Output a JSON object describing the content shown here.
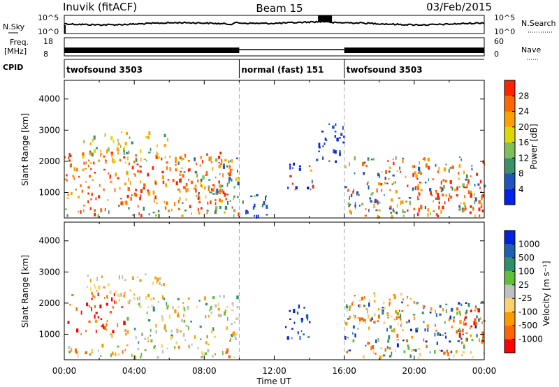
{
  "header": {
    "station": "Inuvik (fitACF)",
    "beam": "Beam 15",
    "date": "03/Feb/2015"
  },
  "summary": {
    "nsky_label": "N.Sky",
    "nsearch_label": "N.Search",
    "nsky_ticks": [
      "10^5",
      "10^0"
    ],
    "nsearch_ticks": [
      "10^5",
      "10^0"
    ],
    "freq_label_1": "Freq.",
    "freq_label_2": "[MHz]",
    "freq_ticks": [
      "18",
      "8"
    ],
    "nave_label": "Nave",
    "nave_ticks": [
      "60",
      "0"
    ],
    "cpid_label": "CPID",
    "cpid_segments": [
      {
        "label": "twofsound 3503",
        "start_h": 0,
        "end_h": 10
      },
      {
        "label": "normal (fast) 151",
        "start_h": 10,
        "end_h": 16
      },
      {
        "label": "twofsound 3503",
        "start_h": 16,
        "end_h": 24
      }
    ]
  },
  "colors": {
    "power_scale": [
      "#0022ee",
      "#2255bb",
      "#3d8f6a",
      "#7fbf5a",
      "#ddd800",
      "#ffa000",
      "#ff6600",
      "#ff2200"
    ],
    "velocity_scale": [
      "#ff0000",
      "#ff6600",
      "#ff9900",
      "#ffd070",
      "#c0c0c0",
      "#5fbf3a",
      "#2e8f6a",
      "#2060b0",
      "#0022dd"
    ]
  },
  "chart_data": [
    {
      "type": "heatmap",
      "name": "power",
      "xlabel": "",
      "ylabel": "Slant Range [km]",
      "x_ticks": [
        "00:00",
        "04:00",
        "08:00",
        "12:00",
        "16:00",
        "20:00",
        "00:00"
      ],
      "y_ticks": [
        "1000",
        "2000",
        "3000",
        "4000"
      ],
      "ylim": [
        180,
        4600
      ],
      "colorbar_label": "Power [dB]",
      "colorbar_ticks": [
        "4",
        "8",
        "12",
        "16",
        "20",
        "24",
        "28"
      ],
      "regions": [
        {
          "t0": 0.0,
          "t1": 9.8,
          "r0": 600,
          "r1": 2250,
          "level": 7,
          "mix": [
            5,
            6,
            7
          ]
        },
        {
          "t0": 1.0,
          "t1": 6.0,
          "r0": 1900,
          "r1": 2900,
          "level": 5,
          "mix": [
            2,
            3,
            4,
            5
          ]
        },
        {
          "t0": 6.5,
          "t1": 10.0,
          "r0": 600,
          "r1": 2100,
          "level": 4,
          "mix": [
            1,
            2,
            3,
            4,
            5,
            6
          ]
        },
        {
          "t0": 0.0,
          "t1": 10.0,
          "r0": 200,
          "r1": 550,
          "level": 5,
          "mix": [
            2,
            3,
            5,
            6,
            7
          ]
        },
        {
          "t0": 10.0,
          "t1": 11.6,
          "r0": 200,
          "r1": 900,
          "level": 2,
          "mix": [
            0,
            1,
            2,
            3
          ]
        },
        {
          "t0": 12.6,
          "t1": 14.2,
          "r0": 1000,
          "r1": 1900,
          "level": 2,
          "mix": [
            0,
            1,
            5,
            7
          ]
        },
        {
          "t0": 14.3,
          "t1": 16.0,
          "r0": 1900,
          "r1": 3200,
          "level": 1,
          "mix": [
            0,
            1
          ]
        },
        {
          "t0": 16.0,
          "t1": 24.0,
          "r0": 300,
          "r1": 2100,
          "level": 6,
          "mix": [
            1,
            2,
            3,
            5,
            6,
            7
          ]
        },
        {
          "t0": 20.0,
          "t1": 23.9,
          "r0": 400,
          "r1": 1400,
          "level": 7,
          "mix": [
            6,
            7
          ]
        },
        {
          "t0": 16.0,
          "t1": 24.0,
          "r0": 200,
          "r1": 450,
          "level": 5,
          "mix": [
            3,
            5,
            6,
            7
          ]
        }
      ]
    },
    {
      "type": "heatmap",
      "name": "velocity",
      "xlabel": "Time UT",
      "ylabel": "Slant Range [km]",
      "x_ticks": [
        "00:00",
        "04:00",
        "08:00",
        "12:00",
        "16:00",
        "20:00",
        "00:00"
      ],
      "y_ticks": [
        "1000",
        "2000",
        "3000",
        "4000"
      ],
      "ylim": [
        180,
        4600
      ],
      "colorbar_label": "Velocity [m s⁻¹]",
      "colorbar_ticks": [
        "1000",
        "500",
        "100",
        "25",
        "-25",
        "-100",
        "-500",
        "-1000"
      ],
      "regions": [
        {
          "t0": 0.0,
          "t1": 3.5,
          "r0": 900,
          "r1": 2300,
          "level": 1,
          "mix": [
            0,
            1,
            2
          ]
        },
        {
          "t0": 3.5,
          "t1": 10.0,
          "r0": 700,
          "r1": 2200,
          "level": 5,
          "mix": [
            2,
            3,
            4,
            5,
            6
          ]
        },
        {
          "t0": 1.0,
          "t1": 6.0,
          "r0": 2100,
          "r1": 2900,
          "level": 3,
          "mix": [
            2,
            3,
            4
          ]
        },
        {
          "t0": 0.0,
          "t1": 10.0,
          "r0": 200,
          "r1": 650,
          "level": 2,
          "mix": [
            1,
            2,
            3,
            4,
            5
          ]
        },
        {
          "t0": 12.6,
          "t1": 14.2,
          "r0": 800,
          "r1": 1900,
          "level": 8,
          "mix": [
            7,
            8
          ]
        },
        {
          "t0": 16.0,
          "t1": 24.0,
          "r0": 400,
          "r1": 2000,
          "level": 7,
          "mix": [
            1,
            2,
            5,
            6,
            7,
            8
          ]
        },
        {
          "t0": 16.0,
          "t1": 20.0,
          "r0": 1300,
          "r1": 2300,
          "level": 2,
          "mix": [
            1,
            2,
            3
          ]
        },
        {
          "t0": 22.5,
          "t1": 24.0,
          "r0": 700,
          "r1": 1800,
          "level": 0,
          "mix": [
            0,
            1
          ]
        },
        {
          "t0": 16.0,
          "t1": 24.0,
          "r0": 200,
          "r1": 500,
          "level": 2,
          "mix": [
            1,
            2,
            3,
            6
          ]
        }
      ]
    }
  ]
}
